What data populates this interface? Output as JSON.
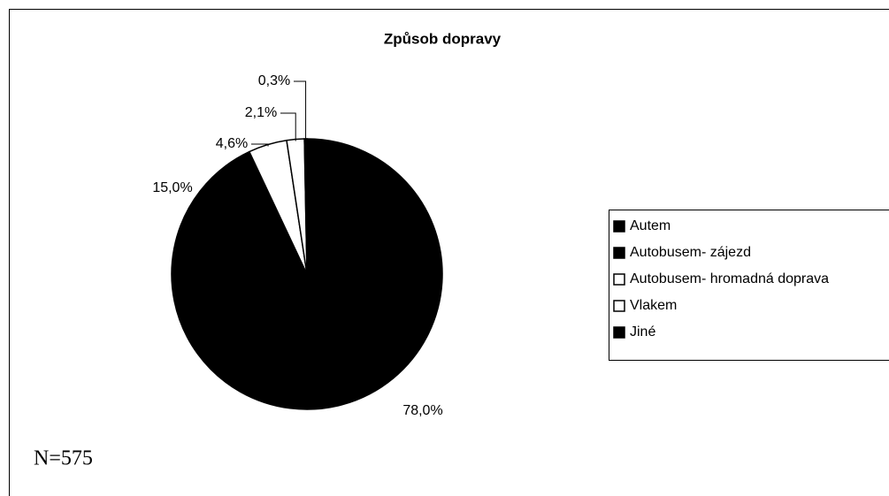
{
  "chart_data": {
    "type": "pie",
    "title": "Způsob dopravy",
    "categories": [
      "Autem",
      "Autobusem- zájezd",
      "Autobusem- hromadná doprava",
      "Vlakem",
      "Jiné"
    ],
    "values": [
      78.0,
      15.0,
      4.6,
      2.1,
      0.3
    ],
    "value_labels": [
      "78,0%",
      "15,0%",
      "4,6%",
      "2,1%",
      "0,3%"
    ],
    "colors": [
      "#000000",
      "#000000",
      "#ffffff",
      "#ffffff",
      "#000000"
    ],
    "legend": "right",
    "annotation": "N=575"
  }
}
